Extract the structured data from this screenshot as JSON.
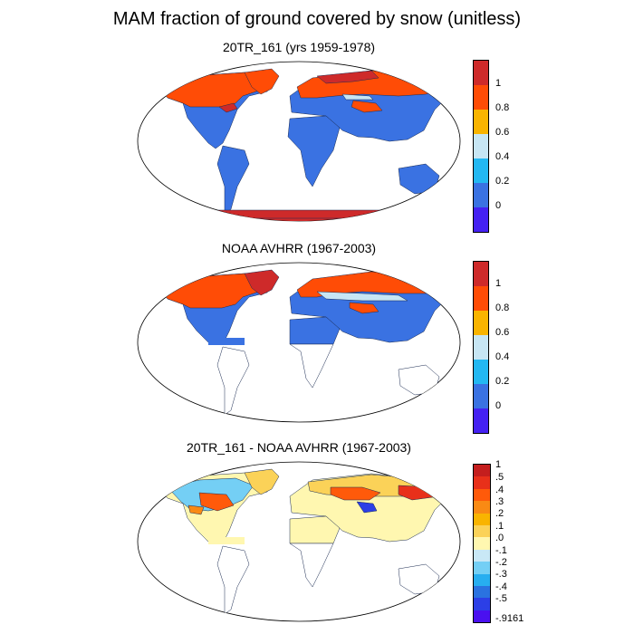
{
  "title": "MAM fraction of ground covered by snow (unitless)",
  "panels": [
    {
      "subtitle": "20TR_161 (yrs 1959-1978)",
      "colorbar": {
        "colors": [
          "#ce2a2a",
          "#ff4c06",
          "#f9b400",
          "#c7e6f4",
          "#23b8f2",
          "#3a72e2",
          "#4521f2"
        ],
        "labels": [
          "1",
          "0.8",
          "0.6",
          "0.4",
          "0.2",
          "0"
        ]
      }
    },
    {
      "subtitle": "NOAA AVHRR (1967-2003)",
      "colorbar": {
        "colors": [
          "#ce2a2a",
          "#ff4c06",
          "#f9b400",
          "#c7e6f4",
          "#23b8f2",
          "#3a72e2",
          "#4521f2"
        ],
        "labels": [
          "1",
          "0.8",
          "0.6",
          "0.4",
          "0.2",
          "0"
        ]
      }
    },
    {
      "subtitle": "20TR_161 - NOAA AVHRR (1967-2003)",
      "colorbar": {
        "colors": [
          "#c41e1e",
          "#e8301a",
          "#ff5a0a",
          "#f98a14",
          "#f9b400",
          "#fbd258",
          "#fff7b0",
          "#c9e8f6",
          "#74cff5",
          "#27aef0",
          "#2a72e0",
          "#2c3fe6",
          "#4a10f0"
        ],
        "labels": [
          "1",
          ".5",
          ".4",
          ".3",
          ".2",
          ".1",
          ".0",
          "-.1",
          "-.2",
          "-.3",
          "-.4",
          "-.5",
          "-.9161"
        ]
      }
    }
  ]
}
